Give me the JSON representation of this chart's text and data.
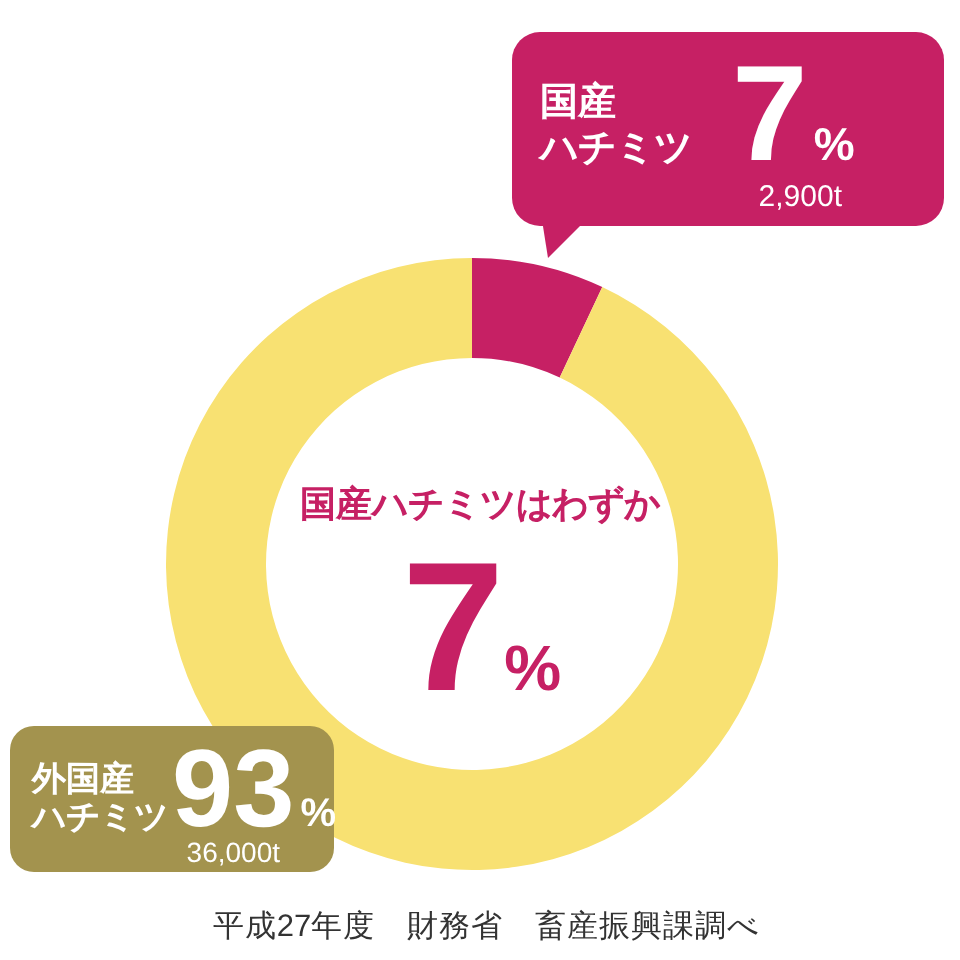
{
  "chart_data": {
    "type": "donut",
    "categories": [
      "国産ハチミツ",
      "外国産ハチミツ"
    ],
    "values": [
      7,
      93
    ],
    "colors": [
      "#c62064",
      "#f8e172"
    ],
    "value_labels": [
      "7%",
      "93%"
    ],
    "annotations": [
      "2,900t",
      "36,000t",
      "国産ハチミツはわずか",
      "7%",
      "平成27年度　財務省　畜産振興課調べ"
    ]
  }
}
